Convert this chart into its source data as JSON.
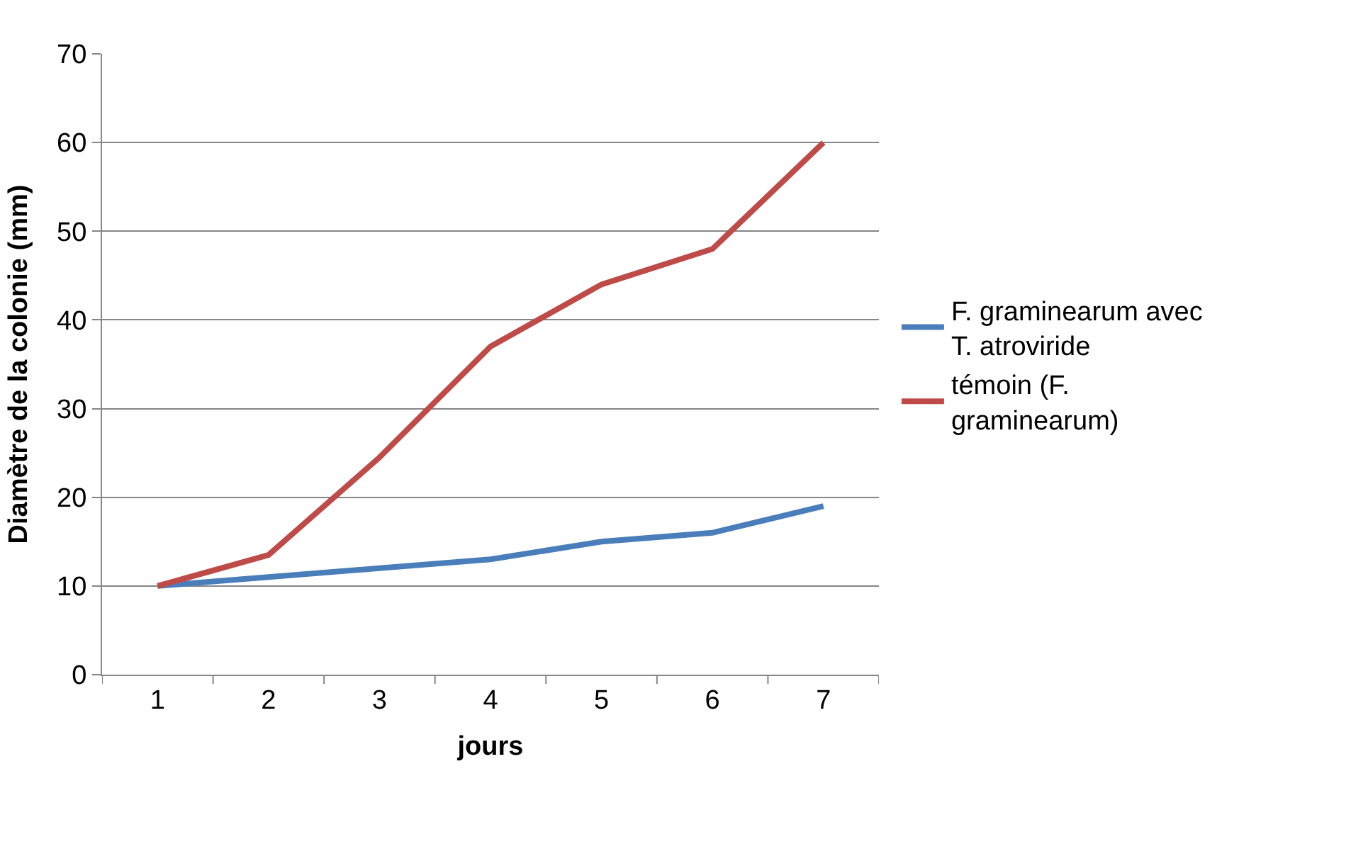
{
  "chart_data": {
    "type": "line",
    "xlabel": "jours",
    "ylabel": "Diamètre de la colonie (mm)",
    "categories": [
      "1",
      "2",
      "3",
      "4",
      "5",
      "6",
      "7"
    ],
    "series": [
      {
        "name": "F. graminearum avec T. atroviride",
        "color": "#4a7ebb",
        "values": [
          10,
          11,
          12,
          13,
          15,
          16,
          19
        ]
      },
      {
        "name": "témoin (F. graminearum)",
        "color": "#be4b48",
        "values": [
          10,
          13.5,
          24.5,
          37,
          44,
          48,
          60
        ]
      }
    ],
    "ylim": [
      0,
      70
    ],
    "yticks": [
      0,
      10,
      20,
      30,
      40,
      50,
      60,
      70
    ],
    "grid": "y",
    "legend": "right",
    "marker": "none",
    "line_style": "solid"
  }
}
